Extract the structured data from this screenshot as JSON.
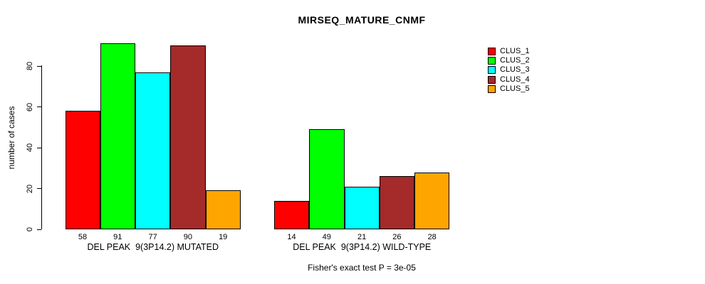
{
  "chart_data": {
    "type": "bar",
    "title": "MIRSEQ_MATURE_CNMF",
    "ylabel": "number of cases",
    "xlabel": "",
    "yticks": [
      0,
      20,
      40,
      60,
      80
    ],
    "ylim": [
      0,
      93
    ],
    "grid": false,
    "legend_position": "right",
    "categories": [
      "DEL PEAK  9(3P14.2) MUTATED",
      "DEL PEAK  9(3P14.2) WILD-TYPE"
    ],
    "series": [
      {
        "name": "CLUS_1",
        "color": "#FF0000",
        "values": [
          58,
          14
        ]
      },
      {
        "name": "CLUS_2",
        "color": "#00FF00",
        "values": [
          91,
          49
        ]
      },
      {
        "name": "CLUS_3",
        "color": "#00FFFF",
        "values": [
          77,
          21
        ]
      },
      {
        "name": "CLUS_4",
        "color": "#A52A2A",
        "values": [
          90,
          26
        ]
      },
      {
        "name": "CLUS_5",
        "color": "#FFA500",
        "values": [
          19,
          28
        ]
      }
    ],
    "bar_value_labels": [
      [
        58,
        91,
        77,
        90,
        19
      ],
      [
        14,
        49,
        21,
        26,
        28
      ]
    ],
    "annotation": "Fisher's exact test P = 3e-05"
  },
  "colors": {
    "background": "#FFFFFF",
    "axis": "#000000",
    "text": "#000000"
  }
}
